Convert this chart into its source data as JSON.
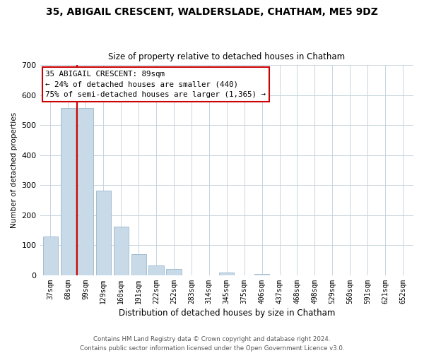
{
  "title": "35, ABIGAIL CRESCENT, WALDERSLADE, CHATHAM, ME5 9DZ",
  "subtitle": "Size of property relative to detached houses in Chatham",
  "xlabel": "Distribution of detached houses by size in Chatham",
  "ylabel": "Number of detached properties",
  "footer_line1": "Contains HM Land Registry data © Crown copyright and database right 2024.",
  "footer_line2": "Contains public sector information licensed under the Open Government Licence v3.0.",
  "bar_labels": [
    "37sqm",
    "68sqm",
    "99sqm",
    "129sqm",
    "160sqm",
    "191sqm",
    "222sqm",
    "252sqm",
    "283sqm",
    "314sqm",
    "345sqm",
    "375sqm",
    "406sqm",
    "437sqm",
    "468sqm",
    "498sqm",
    "529sqm",
    "560sqm",
    "591sqm",
    "621sqm",
    "652sqm"
  ],
  "bar_values": [
    130,
    557,
    557,
    283,
    163,
    70,
    33,
    20,
    0,
    0,
    10,
    0,
    5,
    0,
    0,
    0,
    0,
    0,
    0,
    0,
    0
  ],
  "bar_color": "#c8d9e8",
  "bar_edge_color": "#9ab8cc",
  "ylim": [
    0,
    700
  ],
  "yticks": [
    0,
    100,
    200,
    300,
    400,
    500,
    600,
    700
  ],
  "vline_pos": 1.5,
  "annotation_line1": "35 ABIGAIL CRESCENT: 89sqm",
  "annotation_line2": "← 24% of detached houses are smaller (440)",
  "annotation_line3": "75% of semi-detached houses are larger (1,365) →",
  "vline_color": "#cc0000",
  "box_edge_color": "#cc0000",
  "grid_color": "#c8d4de",
  "background_color": "#ffffff",
  "fig_width": 6.0,
  "fig_height": 5.0,
  "fig_dpi": 100
}
